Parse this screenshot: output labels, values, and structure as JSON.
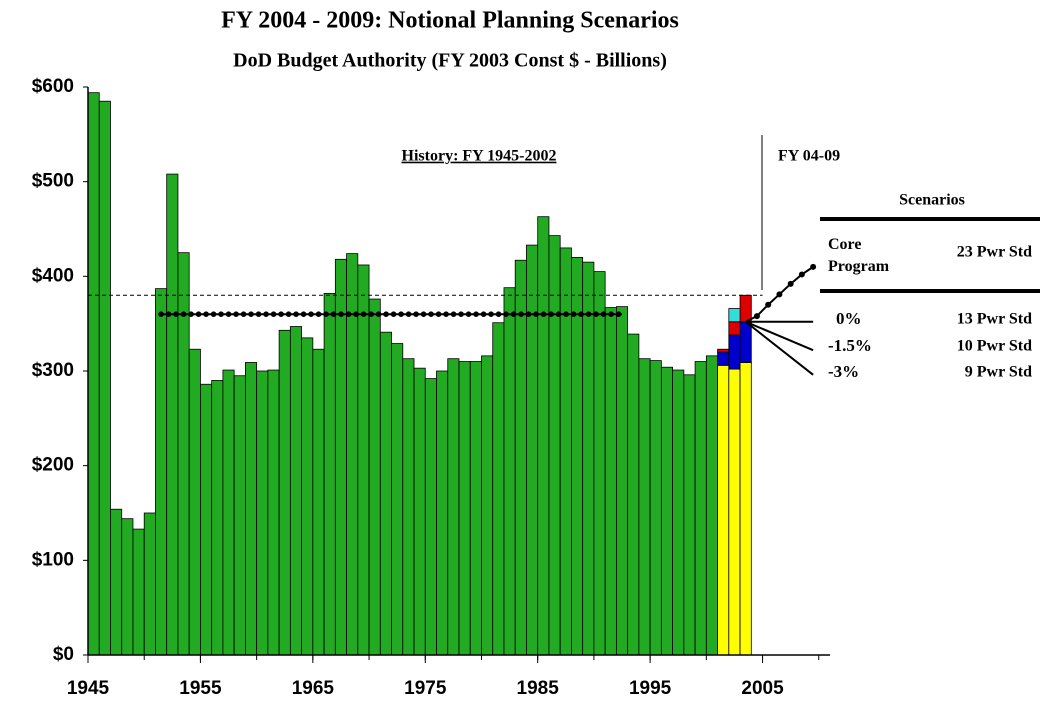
{
  "chart_data": {
    "type": "bar",
    "title": "FY 2004 - 2009: Notional Planning Scenarios",
    "subtitle": "DoD Budget Authority (FY 2003 Const $ - Billions)",
    "xlim": [
      1945,
      2011
    ],
    "xticks": [
      1945,
      1955,
      1965,
      1975,
      1985,
      1995,
      2005
    ],
    "ylim": [
      0,
      600
    ],
    "yticks": [
      {
        "value": 0,
        "label": "$0"
      },
      {
        "value": 100,
        "label": "$100"
      },
      {
        "value": 200,
        "label": "$200"
      },
      {
        "value": 300,
        "label": "$300"
      },
      {
        "value": 400,
        "label": "$400"
      },
      {
        "value": 500,
        "label": "$500"
      },
      {
        "value": 600,
        "label": "$600"
      }
    ],
    "bars": [
      {
        "color": "#22aa22",
        "x": [
          1945,
          1946,
          1947,
          1948,
          1949,
          1950,
          1951,
          1952,
          1953,
          1954,
          1955,
          1956,
          1957,
          1958,
          1959,
          1960,
          1961,
          1962,
          1963,
          1964,
          1965,
          1966,
          1967,
          1968,
          1969,
          1970,
          1971,
          1972,
          1973,
          1974,
          1975,
          1976,
          1977,
          1978,
          1979,
          1980,
          1981,
          1982,
          1983,
          1984,
          1985,
          1986,
          1987,
          1988,
          1989,
          1990,
          1991,
          1992,
          1993,
          1994,
          1995,
          1996,
          1997,
          1998,
          1999,
          2000
        ],
        "values": [
          594,
          585,
          154,
          144,
          133,
          150,
          387,
          508,
          425,
          323,
          286,
          290,
          301,
          295,
          309,
          300,
          301,
          343,
          347,
          335,
          323,
          382,
          418,
          424,
          412,
          376,
          341,
          329,
          313,
          303,
          292,
          300,
          313,
          310,
          310,
          316,
          351,
          388,
          417,
          433,
          463,
          443,
          430,
          420,
          415,
          405,
          367,
          368,
          339,
          313,
          311,
          304,
          301,
          296,
          310,
          316
        ]
      }
    ],
    "stacked": [
      {
        "color": "#ffff00",
        "x": [
          2001,
          2002,
          2003
        ],
        "values": [
          306,
          302,
          309
        ]
      },
      {
        "color": "#0000cc",
        "x": [
          2001,
          2002,
          2003
        ],
        "values": [
          14,
          36,
          43
        ]
      },
      {
        "color": "#dd0000",
        "x": [
          2001,
          2002,
          2003
        ],
        "values": [
          3,
          14,
          28
        ]
      },
      {
        "color": "#33dddd",
        "x": [
          2001,
          2002,
          2003
        ],
        "values": [
          null,
          14,
          null
        ]
      }
    ],
    "reference_lines": [
      {
        "value": 360,
        "from": 1951,
        "to": 1992,
        "style": "dots"
      },
      {
        "value": 380,
        "from": 1945,
        "to": 2005,
        "style": "dashed"
      }
    ],
    "scenarios": [
      {
        "name": "Core Program",
        "label": "23 Pwr Std",
        "x": [
          2003,
          2004,
          2005,
          2006,
          2007,
          2008,
          2009
        ],
        "values": [
          352,
          358,
          370,
          381,
          392,
          402,
          410
        ],
        "dots": true
      },
      {
        "name": "0%",
        "label": "13 Pwr Std",
        "x": [
          2003,
          2009
        ],
        "values": [
          352,
          352
        ]
      },
      {
        "name": "-1.5%",
        "label": "10  Pwr Std",
        "x": [
          2003,
          2009
        ],
        "values": [
          352,
          322
        ]
      },
      {
        "name": "-3%",
        "label": "9 Pwr Std",
        "x": [
          2003,
          2009
        ],
        "values": [
          352,
          296
        ]
      }
    ],
    "annotations": {
      "history": "History: FY 1945-2002",
      "forecast": "FY 04-09",
      "scenarios_header": "Scenarios"
    }
  }
}
